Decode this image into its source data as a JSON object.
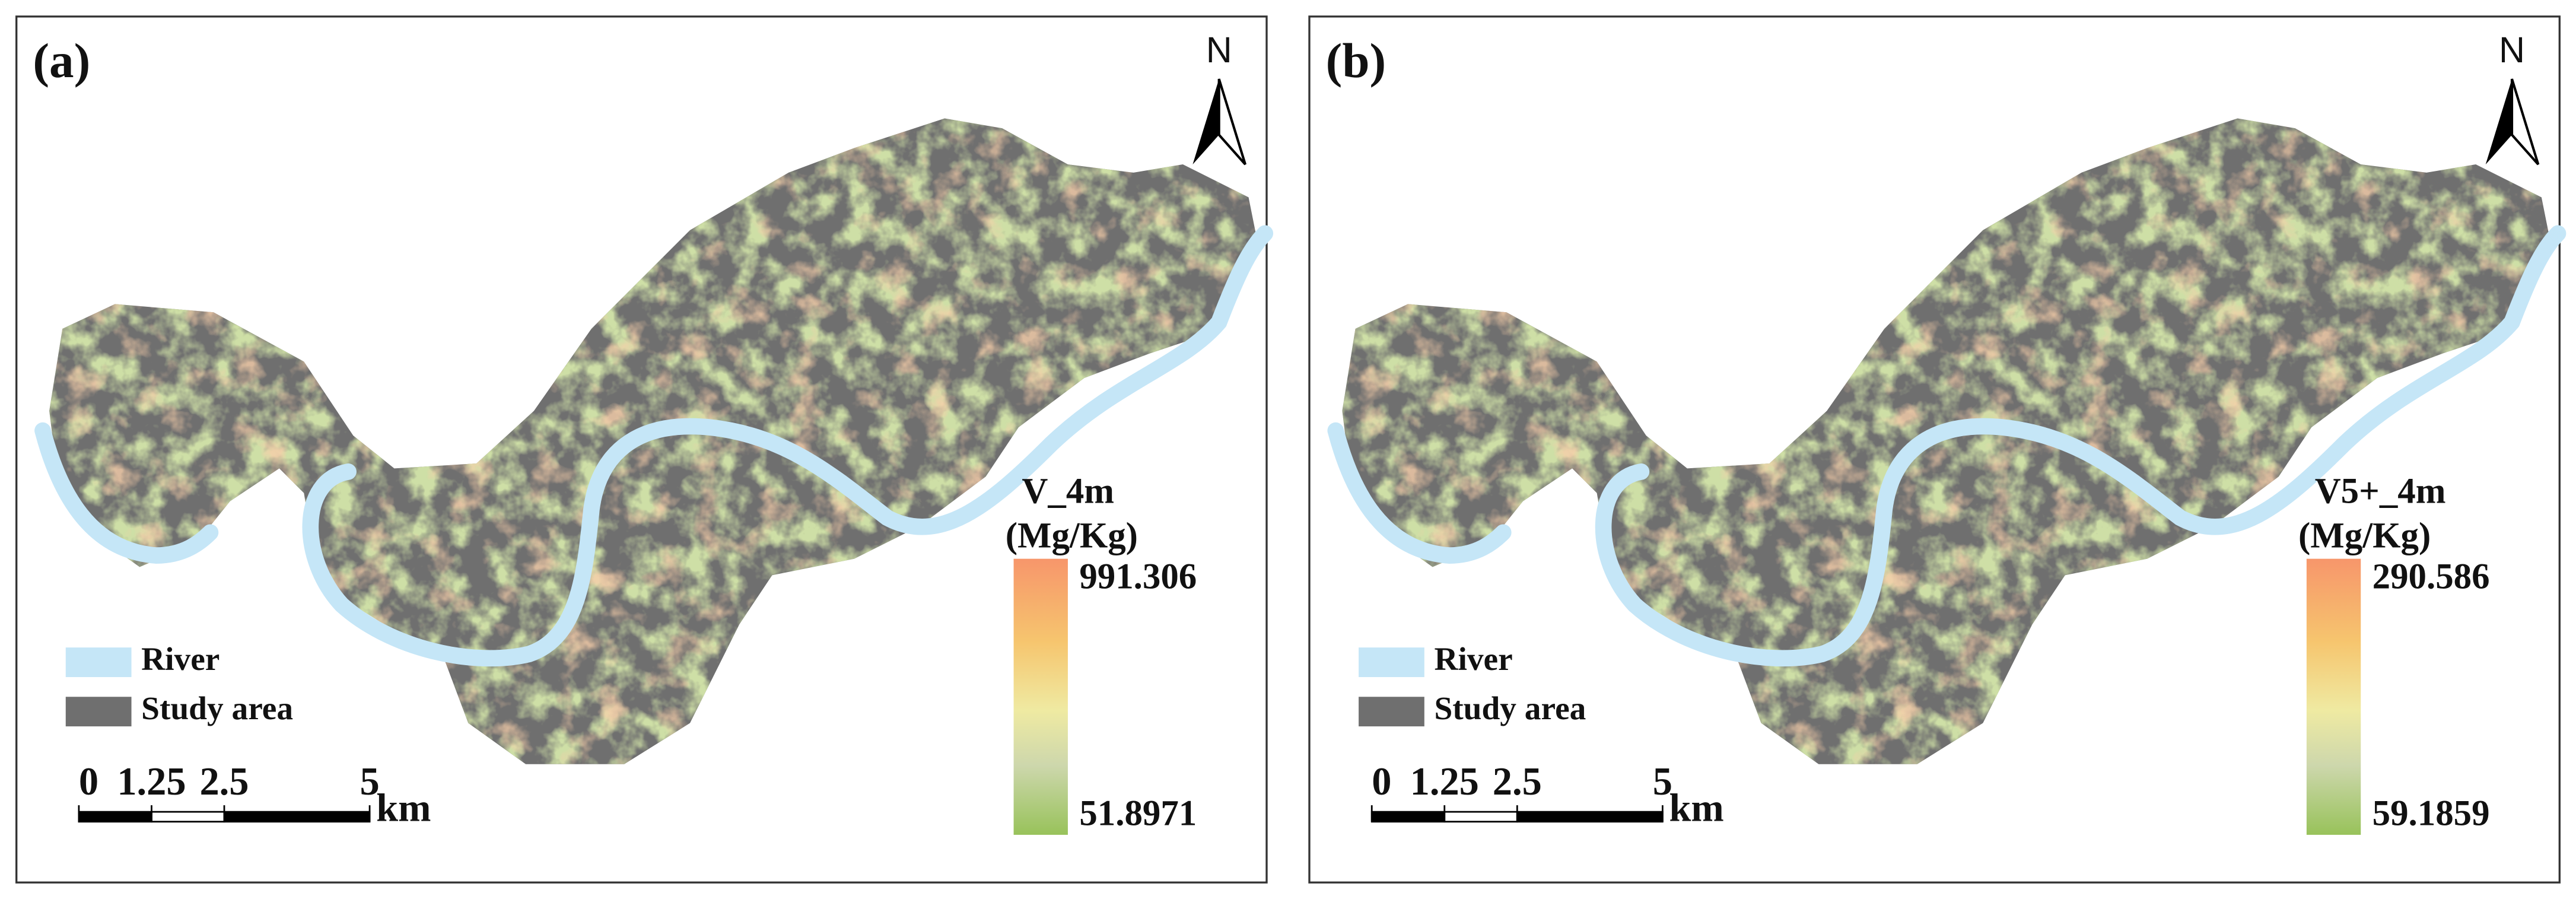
{
  "panels": [
    {
      "label": "(a)",
      "north": "N",
      "variable": "V_4m",
      "unit": "(Mg/Kg)",
      "legend_max": 991.306,
      "legend_min": 51.8971,
      "legend_items": [
        "River",
        "Study area"
      ],
      "scale_bar": {
        "ticks": [
          0,
          1.25,
          2.5,
          5
        ],
        "unit": "km"
      }
    },
    {
      "label": "(b)",
      "north": "N",
      "variable": "V5+_4m",
      "unit": "(Mg/Kg)",
      "legend_max": 290.586,
      "legend_min": 59.1859,
      "legend_items": [
        "River",
        "Study area"
      ],
      "scale_bar": {
        "ticks": [
          0,
          1.25,
          2.5,
          5
        ],
        "unit": "km"
      }
    }
  ]
}
